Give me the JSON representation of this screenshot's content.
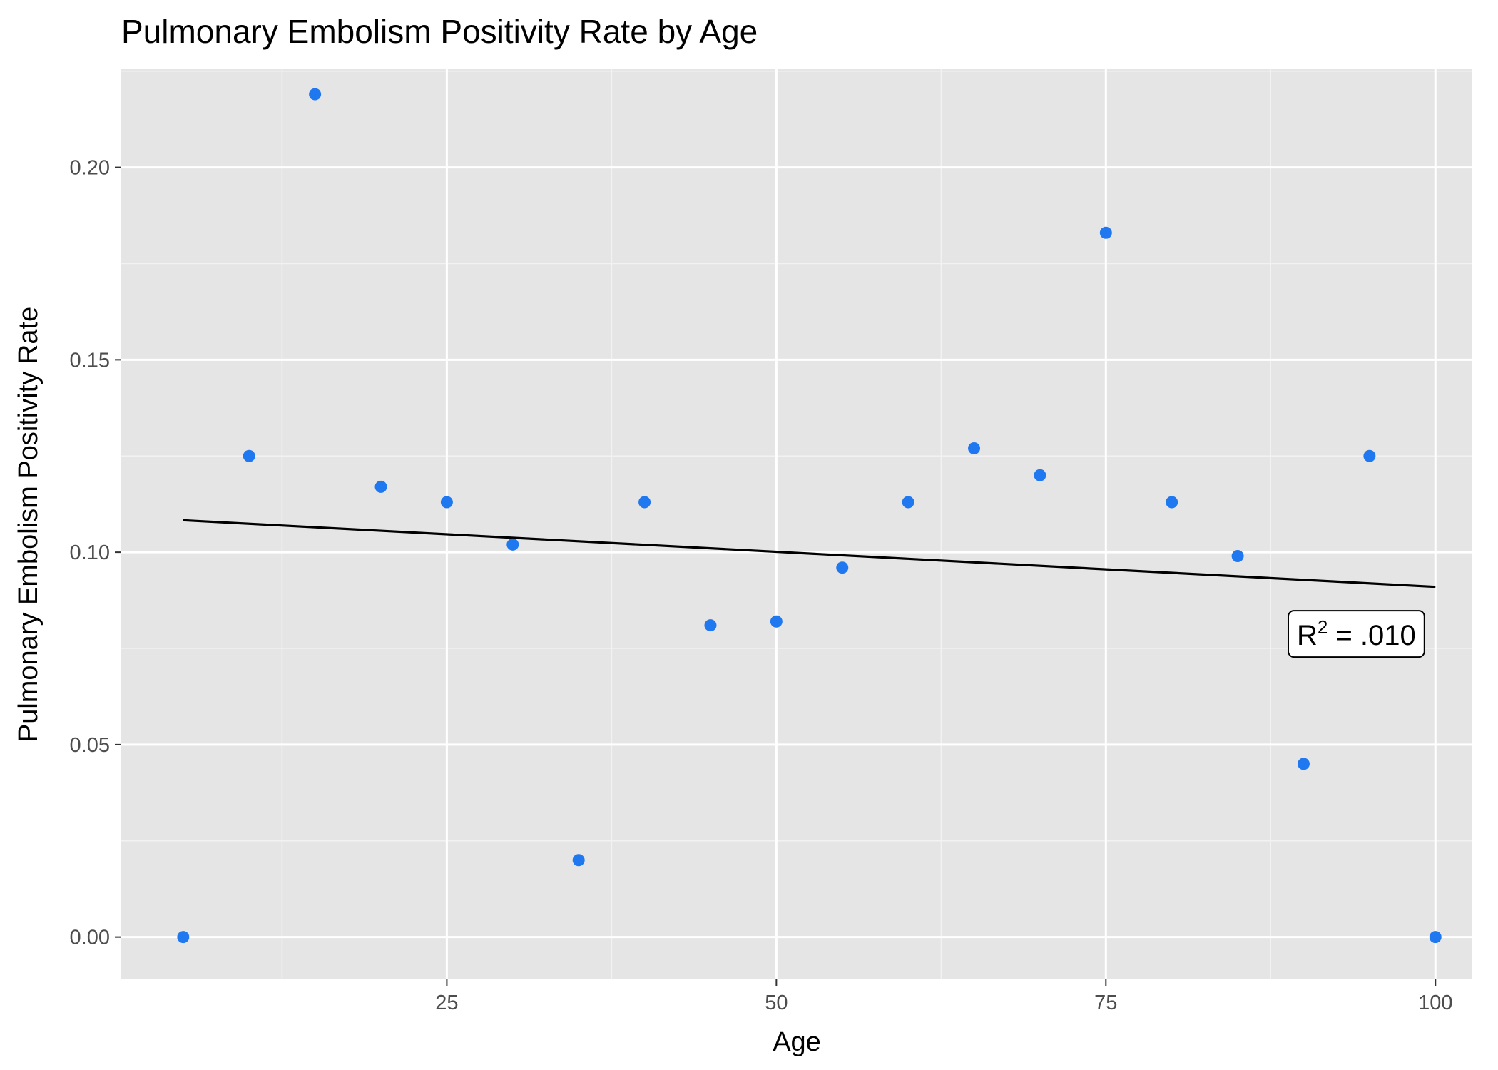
{
  "chart_data": {
    "type": "scatter",
    "title": "Pulmonary Embolism Positivity Rate by Age",
    "xlabel": "Age",
    "ylabel": "Pulmonary Embolism Positivity Rate",
    "xlim": [
      0.3,
      102.8
    ],
    "ylim": [
      -0.011,
      0.2255
    ],
    "xticks": [
      25,
      50,
      75,
      100
    ],
    "xtick_labels": [
      "25",
      "50",
      "75",
      "100"
    ],
    "yticks": [
      0.0,
      0.05,
      0.1,
      0.15,
      0.2
    ],
    "ytick_labels": [
      "0.00",
      "0.05",
      "0.10",
      "0.15",
      "0.20"
    ],
    "grid": true,
    "legend": "none",
    "series": [
      {
        "point_color": "#1F78F0",
        "x": [
          5,
          10,
          15,
          20,
          25,
          30,
          35,
          40,
          45,
          50,
          55,
          60,
          65,
          70,
          75,
          80,
          85,
          90,
          95,
          100
        ],
        "y": [
          0.0,
          0.125,
          0.219,
          0.117,
          0.113,
          0.102,
          0.02,
          0.113,
          0.081,
          0.082,
          0.096,
          0.113,
          0.127,
          0.12,
          0.183,
          0.113,
          0.099,
          0.045,
          0.125,
          0.0
        ]
      }
    ],
    "trendline": {
      "color": "#000000",
      "x": [
        5,
        100
      ],
      "y": [
        0.1083,
        0.091
      ]
    },
    "annotation": {
      "text_base": "R",
      "text_sup": "2",
      "text_rest": " = .010",
      "x": 94,
      "y": 0.0785
    },
    "colors": {
      "panel_background": "#E5E5E5",
      "grid_major": "#FFFFFF",
      "grid_minor": "#F2F2F2",
      "tick_text": "#4D4D4D",
      "tick_mark": "#333333"
    }
  }
}
